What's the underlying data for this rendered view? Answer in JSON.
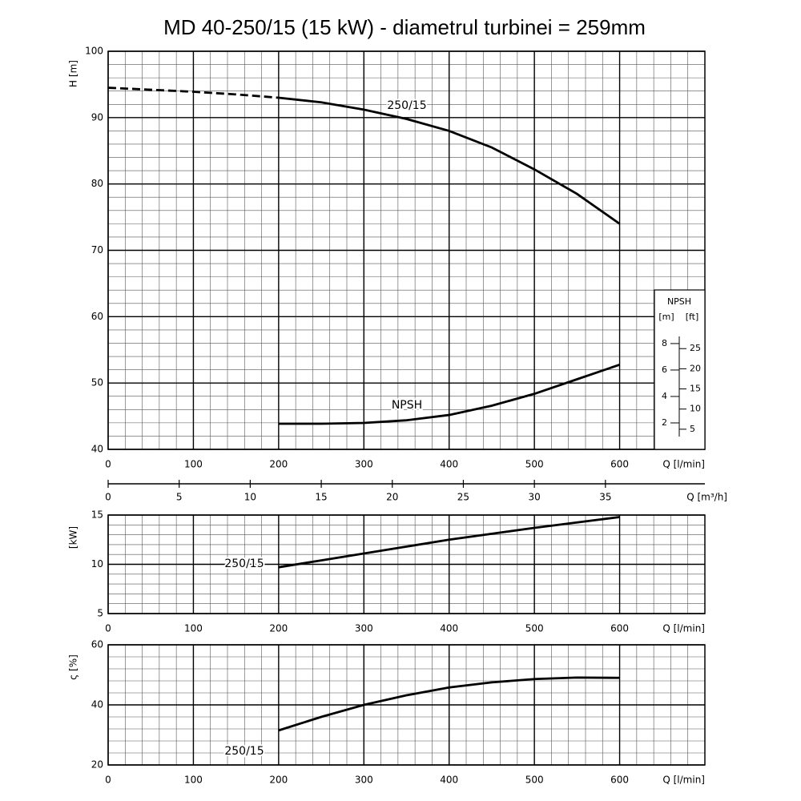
{
  "chart_data": [
    {
      "type": "line",
      "title": "MD 40-250/15 (15 kW) - diametrul turbinei = 259mm",
      "ylabel": "H [m]",
      "xlabel": "Q [l/min]",
      "x": [
        0,
        50,
        100,
        150,
        200,
        250,
        300,
        350,
        400,
        450,
        500,
        550,
        600
      ],
      "xlim": [
        0,
        700
      ],
      "xticks": [
        0,
        100,
        200,
        300,
        400,
        500,
        600
      ],
      "ylim": [
        40,
        100
      ],
      "yticks": [
        40,
        50,
        60,
        70,
        80,
        90,
        100
      ],
      "y2lim": [
        0,
        30.1
      ],
      "y2ticks": [
        2,
        4,
        6,
        8
      ],
      "ftlim": [
        0,
        98.8
      ],
      "ftticks": [
        5,
        10,
        15,
        20,
        25
      ],
      "npsh_title": "NPSH",
      "m_label": "[m]",
      "ft_label": "[ft]",
      "grid": true,
      "xminor_step": 20,
      "yminor_step": 2,
      "annotations": [
        "250/15",
        "NPSH"
      ],
      "series": [
        {
          "color": "#000000",
          "style": "dashed",
          "values": [
            94.5,
            94.2,
            93.9,
            93.5,
            93.0,
            null,
            null,
            null,
            null,
            null,
            null,
            null,
            null
          ]
        },
        {
          "color": "#000000",
          "style": "solid",
          "values": [
            null,
            null,
            null,
            null,
            93.0,
            92.3,
            91.2,
            89.8,
            88.0,
            85.5,
            82.2,
            78.5,
            74.0
          ]
        },
        {
          "color": "#000000",
          "style": "solid",
          "axis": "y2",
          "values": [
            null,
            null,
            null,
            null,
            1.94,
            1.94,
            2.0,
            2.2,
            2.6,
            3.3,
            4.2,
            5.3,
            6.4
          ]
        }
      ]
    },
    {
      "type": "axis",
      "xlabel": "Q [m³/h]",
      "xlim": [
        0,
        42
      ],
      "xticks": [
        0,
        5,
        10,
        15,
        20,
        25,
        30,
        35
      ]
    },
    {
      "type": "line",
      "ylabel": "[kW]",
      "xlabel": "Q [l/min]",
      "x": [
        200,
        250,
        300,
        350,
        400,
        450,
        500,
        550,
        600
      ],
      "xlim": [
        0,
        700
      ],
      "xticks": [
        0,
        100,
        200,
        300,
        400,
        500,
        600
      ],
      "ylim": [
        5,
        15
      ],
      "yticks": [
        5,
        10,
        15
      ],
      "grid": true,
      "xminor_step": 20,
      "yminor_step": 1,
      "annotations": [
        "250/15"
      ],
      "series": [
        {
          "color": "#000000",
          "style": "solid",
          "values": [
            9.7,
            10.4,
            11.1,
            11.8,
            12.5,
            13.1,
            13.7,
            14.25,
            14.8
          ]
        }
      ]
    },
    {
      "type": "line",
      "ylabel": "ς [%]",
      "xlabel": "Q [l/min]",
      "x": [
        200,
        250,
        300,
        350,
        400,
        450,
        500,
        550,
        600
      ],
      "xlim": [
        0,
        700
      ],
      "xticks": [
        0,
        100,
        200,
        300,
        400,
        500,
        600
      ],
      "ylim": [
        20,
        60
      ],
      "yticks": [
        20,
        40,
        60
      ],
      "grid": true,
      "xminor_step": 20,
      "yminor_step": 4,
      "annotations": [
        "250/15"
      ],
      "series": [
        {
          "color": "#000000",
          "style": "solid",
          "values": [
            31.5,
            36,
            40,
            43.2,
            45.8,
            47.5,
            48.6,
            49.1,
            49.0
          ]
        }
      ]
    }
  ]
}
